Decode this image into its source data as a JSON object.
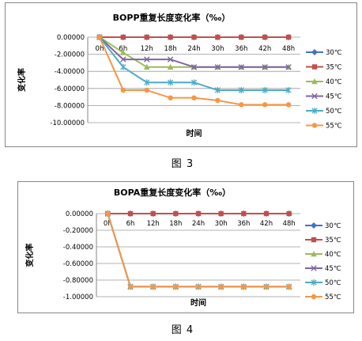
{
  "figures": [
    {
      "caption": "图 3",
      "chart_data": {
        "type": "line",
        "title": "BOPP重复长度变化率（‰）",
        "xlabel": "时间",
        "ylabel": "变化率",
        "categories": [
          "0h",
          "6h",
          "12h",
          "18h",
          "24h",
          "30h",
          "36h",
          "42h",
          "48h"
        ],
        "ylim": [
          -10,
          0
        ],
        "yticks": [
          "0.00000",
          "-2.00000",
          "-4.00000",
          "-6.00000",
          "-8.00000",
          "-10.00000"
        ],
        "ytick_values": [
          0,
          -2,
          -4,
          -6,
          -8,
          -10
        ],
        "grid": true,
        "legend_position": "right",
        "series": [
          {
            "name": "30℃",
            "color": "#4472C4",
            "marker": "diamond",
            "values": [
              0,
              0,
              0,
              0,
              0,
              0,
              0,
              0,
              0
            ]
          },
          {
            "name": "35℃",
            "color": "#C0504D",
            "marker": "square",
            "values": [
              0,
              0,
              0,
              0,
              0,
              0,
              0,
              0,
              0
            ]
          },
          {
            "name": "40℃",
            "color": "#9BBB59",
            "marker": "triangle",
            "values": [
              0,
              -1.8,
              -3.5,
              -3.5,
              -3.5,
              -3.5,
              -3.5,
              -3.5,
              -3.5
            ]
          },
          {
            "name": "45℃",
            "color": "#8064A2",
            "marker": "x",
            "values": [
              0,
              -2.6,
              -2.6,
              -2.6,
              -3.5,
              -3.5,
              -3.5,
              -3.5,
              -3.5
            ]
          },
          {
            "name": "50℃",
            "color": "#4BACC6",
            "marker": "star",
            "values": [
              0,
              -3.5,
              -5.3,
              -5.3,
              -5.3,
              -6.2,
              -6.2,
              -6.2,
              -6.2
            ]
          },
          {
            "name": "55℃",
            "color": "#F79646",
            "marker": "circle",
            "values": [
              0,
              -6.2,
              -6.2,
              -7.1,
              -7.1,
              -7.4,
              -7.9,
              -7.9,
              -7.9
            ]
          }
        ]
      }
    },
    {
      "caption": "图 4",
      "chart_data": {
        "type": "line",
        "title": "BOPA重复长度变化率（‰）",
        "xlabel": "时间",
        "ylabel": "变化率",
        "categories": [
          "0h",
          "6h",
          "12h",
          "18h",
          "24h",
          "30h",
          "36h",
          "42h",
          "48h"
        ],
        "ylim": [
          -1,
          0
        ],
        "yticks": [
          "0.00000",
          "-0.20000",
          "-0.40000",
          "-0.60000",
          "-0.80000",
          "-1.00000"
        ],
        "ytick_values": [
          0,
          -0.2,
          -0.4,
          -0.6,
          -0.8,
          -1.0
        ],
        "grid": true,
        "legend_position": "right",
        "series": [
          {
            "name": "30℃",
            "color": "#4472C4",
            "marker": "diamond",
            "values": [
              0,
              0,
              0,
              0,
              0,
              0,
              0,
              0,
              0
            ]
          },
          {
            "name": "35℃",
            "color": "#C0504D",
            "marker": "square",
            "values": [
              0,
              0,
              0,
              0,
              0,
              0,
              0,
              0,
              0
            ]
          },
          {
            "name": "40℃",
            "color": "#9BBB59",
            "marker": "triangle",
            "values": [
              0,
              -0.88,
              -0.88,
              -0.88,
              -0.88,
              -0.88,
              -0.88,
              -0.88,
              -0.88
            ]
          },
          {
            "name": "45℃",
            "color": "#8064A2",
            "marker": "x",
            "values": [
              0,
              -0.88,
              -0.88,
              -0.88,
              -0.88,
              -0.88,
              -0.88,
              -0.88,
              -0.88
            ]
          },
          {
            "name": "50℃",
            "color": "#4BACC6",
            "marker": "star",
            "values": [
              0,
              -0.88,
              -0.88,
              -0.88,
              -0.88,
              -0.88,
              -0.88,
              -0.88,
              -0.88
            ]
          },
          {
            "name": "55℃",
            "color": "#F79646",
            "marker": "circle",
            "values": [
              0,
              -0.88,
              -0.88,
              -0.88,
              -0.88,
              -0.88,
              -0.88,
              -0.88,
              -0.88
            ]
          }
        ]
      }
    }
  ]
}
